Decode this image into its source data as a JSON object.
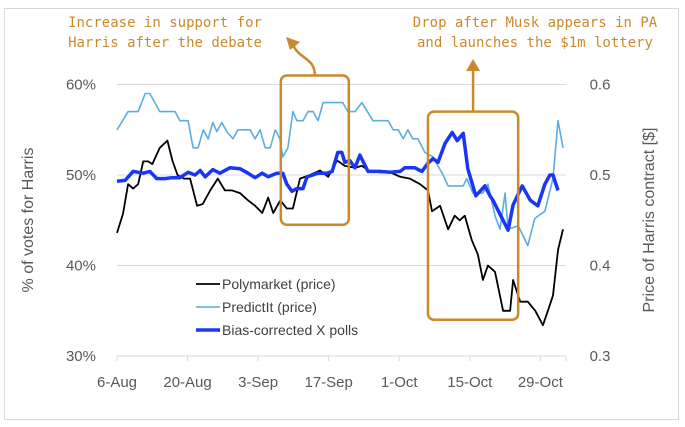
{
  "chart_data": {
    "type": "line",
    "title": "",
    "xlabel": "",
    "ylabel": "% of votes for Harris",
    "y2label": "Price of Harris contract [$]",
    "ylim": [
      30,
      60
    ],
    "y2lim": [
      0.3,
      0.6
    ],
    "x_unit": "days since 6-Aug",
    "xlim": [
      0,
      88.5
    ],
    "x_ticks": [
      {
        "day": 0,
        "label": "6-Aug"
      },
      {
        "day": 14,
        "label": "20-Aug"
      },
      {
        "day": 28,
        "label": "3-Sep"
      },
      {
        "day": 42,
        "label": "17-Sep"
      },
      {
        "day": 56,
        "label": "1-Oct"
      },
      {
        "day": 70,
        "label": "15-Oct"
      },
      {
        "day": 84,
        "label": "29-Oct"
      }
    ],
    "y_ticks": [
      {
        "v": 30,
        "label": "30%"
      },
      {
        "v": 40,
        "label": "40%"
      },
      {
        "v": 50,
        "label": "50%"
      },
      {
        "v": 60,
        "label": "60%"
      }
    ],
    "y2_ticks": [
      {
        "v": 0.3,
        "label": "0.3"
      },
      {
        "v": 0.4,
        "label": "0.4"
      },
      {
        "v": 0.5,
        "label": "0.5"
      },
      {
        "v": 0.6,
        "label": "0.6"
      }
    ],
    "grid": true,
    "legend_position": "bottom-center",
    "series": [
      {
        "name": "Polymarket (price)",
        "color": "#000000",
        "width": 1.8,
        "points": [
          [
            0,
            43.6
          ],
          [
            1.2,
            45.7
          ],
          [
            2.2,
            49
          ],
          [
            3.2,
            48.5
          ],
          [
            4.2,
            49
          ],
          [
            5.2,
            51.5
          ],
          [
            6.2,
            51.5
          ],
          [
            7,
            51.2
          ],
          [
            8.5,
            53
          ],
          [
            10,
            53.8
          ],
          [
            11,
            51.6
          ],
          [
            12,
            50
          ],
          [
            13.3,
            49.6
          ],
          [
            14.5,
            49.6
          ],
          [
            15.9,
            46.6
          ],
          [
            17,
            46.8
          ],
          [
            18.5,
            48.3
          ],
          [
            20,
            49.6
          ],
          [
            21.4,
            48.3
          ],
          [
            22.8,
            48.3
          ],
          [
            24.4,
            48
          ],
          [
            26,
            47.2
          ],
          [
            27.4,
            46.6
          ],
          [
            28.8,
            45.8
          ],
          [
            30,
            47.5
          ],
          [
            31,
            45.8
          ],
          [
            32.4,
            47.2
          ],
          [
            33.7,
            46.3
          ],
          [
            34.9,
            46.3
          ],
          [
            36.3,
            49.6
          ],
          [
            38.3,
            50
          ],
          [
            40.3,
            50.5
          ],
          [
            41.9,
            49.8
          ],
          [
            43.7,
            51.6
          ],
          [
            45.2,
            51
          ],
          [
            47.2,
            50.8
          ],
          [
            48.6,
            51
          ],
          [
            50.2,
            50.4
          ],
          [
            52.2,
            50.3
          ],
          [
            54.2,
            50.3
          ],
          [
            56.2,
            49.8
          ],
          [
            58.1,
            49.6
          ],
          [
            60.1,
            49
          ],
          [
            61.7,
            48.3
          ],
          [
            62.5,
            46
          ],
          [
            64.1,
            46.6
          ],
          [
            65.7,
            44
          ],
          [
            67,
            45.5
          ],
          [
            68,
            45
          ],
          [
            69,
            45.5
          ],
          [
            70.4,
            42.8
          ],
          [
            71.6,
            41.2
          ],
          [
            72.6,
            38.4
          ],
          [
            73.6,
            40
          ],
          [
            75,
            39.3
          ],
          [
            76.6,
            35
          ],
          [
            78,
            35
          ],
          [
            78.6,
            38.4
          ],
          [
            80,
            36
          ],
          [
            81.5,
            36
          ],
          [
            83,
            35
          ],
          [
            84.5,
            33.4
          ],
          [
            85.5,
            35
          ],
          [
            86.5,
            36.7
          ],
          [
            87.5,
            41.7
          ],
          [
            88.5,
            44
          ]
        ]
      },
      {
        "name": "PredictIt (price)",
        "color": "#5aaee0",
        "width": 1.6,
        "points": [
          [
            0,
            55
          ],
          [
            2.2,
            57
          ],
          [
            4.2,
            57
          ],
          [
            5.6,
            59
          ],
          [
            6.5,
            59
          ],
          [
            8.5,
            57
          ],
          [
            11.5,
            57
          ],
          [
            12.5,
            56
          ],
          [
            14.1,
            56
          ],
          [
            15.1,
            53
          ],
          [
            16.1,
            53
          ],
          [
            17.1,
            55
          ],
          [
            18.1,
            54
          ],
          [
            19,
            55.8
          ],
          [
            19.8,
            54.8
          ],
          [
            20.8,
            55.8
          ],
          [
            21.8,
            54.8
          ],
          [
            23,
            54
          ],
          [
            24,
            55
          ],
          [
            26.4,
            55
          ],
          [
            27.4,
            54
          ],
          [
            28.4,
            55
          ],
          [
            29.4,
            53
          ],
          [
            30.4,
            53
          ],
          [
            31.4,
            55
          ],
          [
            32.3,
            54
          ],
          [
            32.9,
            52
          ],
          [
            33.9,
            53
          ],
          [
            34.9,
            57
          ],
          [
            35.7,
            56
          ],
          [
            36.9,
            56
          ],
          [
            37.9,
            57
          ],
          [
            38.9,
            57
          ],
          [
            39.9,
            56
          ],
          [
            40.9,
            58
          ],
          [
            44.8,
            58
          ],
          [
            45.8,
            57
          ],
          [
            47.2,
            57
          ],
          [
            48.6,
            58
          ],
          [
            50.8,
            56
          ],
          [
            53.8,
            56
          ],
          [
            54.8,
            55
          ],
          [
            55.8,
            55
          ],
          [
            56.8,
            54
          ],
          [
            57.7,
            55
          ],
          [
            58.7,
            54
          ],
          [
            59.7,
            54
          ],
          [
            61.1,
            52.5
          ],
          [
            62.7,
            52
          ],
          [
            64.7,
            50
          ],
          [
            65.7,
            48.8
          ],
          [
            68.7,
            48.8
          ],
          [
            69.4,
            49.6
          ],
          [
            70.6,
            48
          ],
          [
            72.6,
            48
          ],
          [
            73.6,
            49
          ],
          [
            75,
            45.5
          ],
          [
            76,
            44
          ],
          [
            77,
            48
          ],
          [
            77.6,
            44
          ],
          [
            79.6,
            44.4
          ],
          [
            81.5,
            42.2
          ],
          [
            82.9,
            45.2
          ],
          [
            84.9,
            46
          ],
          [
            86.5,
            49.6
          ],
          [
            87.5,
            56
          ],
          [
            88.5,
            53
          ]
        ]
      },
      {
        "name": "Bias-corrected X polls",
        "color": "#1a35f5",
        "width": 3.5,
        "points": [
          [
            0,
            49.3
          ],
          [
            1.6,
            49.4
          ],
          [
            3.2,
            50.4
          ],
          [
            5.2,
            50.2
          ],
          [
            6.5,
            50.4
          ],
          [
            7.9,
            49.6
          ],
          [
            9.5,
            49.6
          ],
          [
            10.9,
            49.7
          ],
          [
            12.5,
            49.7
          ],
          [
            14.1,
            50.3
          ],
          [
            15.5,
            50
          ],
          [
            16.5,
            50.5
          ],
          [
            17.5,
            49.8
          ],
          [
            19,
            50.6
          ],
          [
            20.4,
            50.2
          ],
          [
            22.4,
            50.8
          ],
          [
            24.4,
            50.7
          ],
          [
            26,
            50.2
          ],
          [
            27.4,
            49.7
          ],
          [
            28.8,
            50.2
          ],
          [
            30,
            49.8
          ],
          [
            31.7,
            50.2
          ],
          [
            32.9,
            50.2
          ],
          [
            33.7,
            49
          ],
          [
            34.7,
            48.2
          ],
          [
            35.7,
            48.5
          ],
          [
            36.9,
            48.5
          ],
          [
            37.7,
            49.8
          ],
          [
            39.9,
            50.2
          ],
          [
            41.7,
            50.2
          ],
          [
            42.7,
            50.4
          ],
          [
            43.8,
            52.5
          ],
          [
            44.6,
            52.5
          ],
          [
            45.2,
            51.4
          ],
          [
            46.2,
            51.6
          ],
          [
            47.2,
            50.8
          ],
          [
            48.2,
            52.2
          ],
          [
            49.8,
            50.4
          ],
          [
            52.2,
            50.4
          ],
          [
            54.2,
            50.3
          ],
          [
            56.2,
            50.4
          ],
          [
            57.1,
            50.8
          ],
          [
            59.1,
            50.8
          ],
          [
            60.5,
            50.4
          ],
          [
            61.7,
            51.3
          ],
          [
            62.7,
            51.8
          ],
          [
            63.7,
            51.4
          ],
          [
            65.1,
            53.5
          ],
          [
            66.5,
            54.7
          ],
          [
            67.5,
            53.8
          ],
          [
            68.7,
            54.6
          ],
          [
            69.6,
            50.7
          ],
          [
            71.2,
            47.7
          ],
          [
            73,
            48.8
          ],
          [
            74,
            47.7
          ],
          [
            74.6,
            47.2
          ],
          [
            77.6,
            43.9
          ],
          [
            78.6,
            46.7
          ],
          [
            80.4,
            48.8
          ],
          [
            82,
            47.2
          ],
          [
            83.5,
            46.6
          ],
          [
            84.9,
            49
          ],
          [
            85.9,
            50
          ],
          [
            86.5,
            50
          ],
          [
            87.5,
            48.3
          ]
        ]
      }
    ],
    "annotations": [
      {
        "lines": [
          "Increase in support for",
          "Harris after the debate"
        ],
        "box_days": [
          32.5,
          46
        ],
        "box_values": [
          44.5,
          61
        ]
      },
      {
        "lines": [
          "Drop after Musk appears in PA",
          "and launches the $1m lottery"
        ],
        "box_days": [
          61.7,
          79.6
        ],
        "box_values": [
          34,
          57
        ]
      }
    ]
  }
}
